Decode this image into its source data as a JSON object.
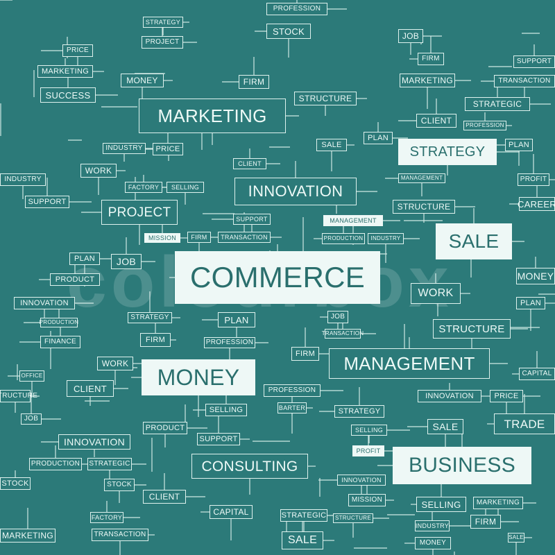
{
  "words": {
    "marketing": "MARKETING",
    "innovation": "INNOVATION",
    "commerce": "COMMERCE",
    "money": "MONEY",
    "management": "MANAGEMENT",
    "consulting": "CONSULTING",
    "business": "BUSINESS",
    "strategy": "STRATEGY",
    "sale": "SALE",
    "project": "PROJECT",
    "work": "WORK",
    "structure": "STRUCTURE",
    "client": "CLIENT",
    "trade": "TRADE",
    "success": "SUCCESS",
    "stock": "STOCK",
    "profession": "PROFESSION",
    "industry": "INDUSTRY",
    "production": "PRODUCTION",
    "firm": "FIRM",
    "price": "PRICE",
    "plan": "PLAN",
    "job": "JOB",
    "product": "PRODUCT",
    "finance": "FINANCE",
    "support": "SUPPORT",
    "transaction": "TRANSACTION",
    "office": "OFFICE",
    "capital": "CAPITAL",
    "selling": "SELLING",
    "mission": "MISSION",
    "factory": "FACTORY",
    "strategic": "STRATEGIC",
    "career": "CAREER",
    "profit": "PROFIT",
    "barter": "BARTER"
  },
  "watermark": "colourbox"
}
